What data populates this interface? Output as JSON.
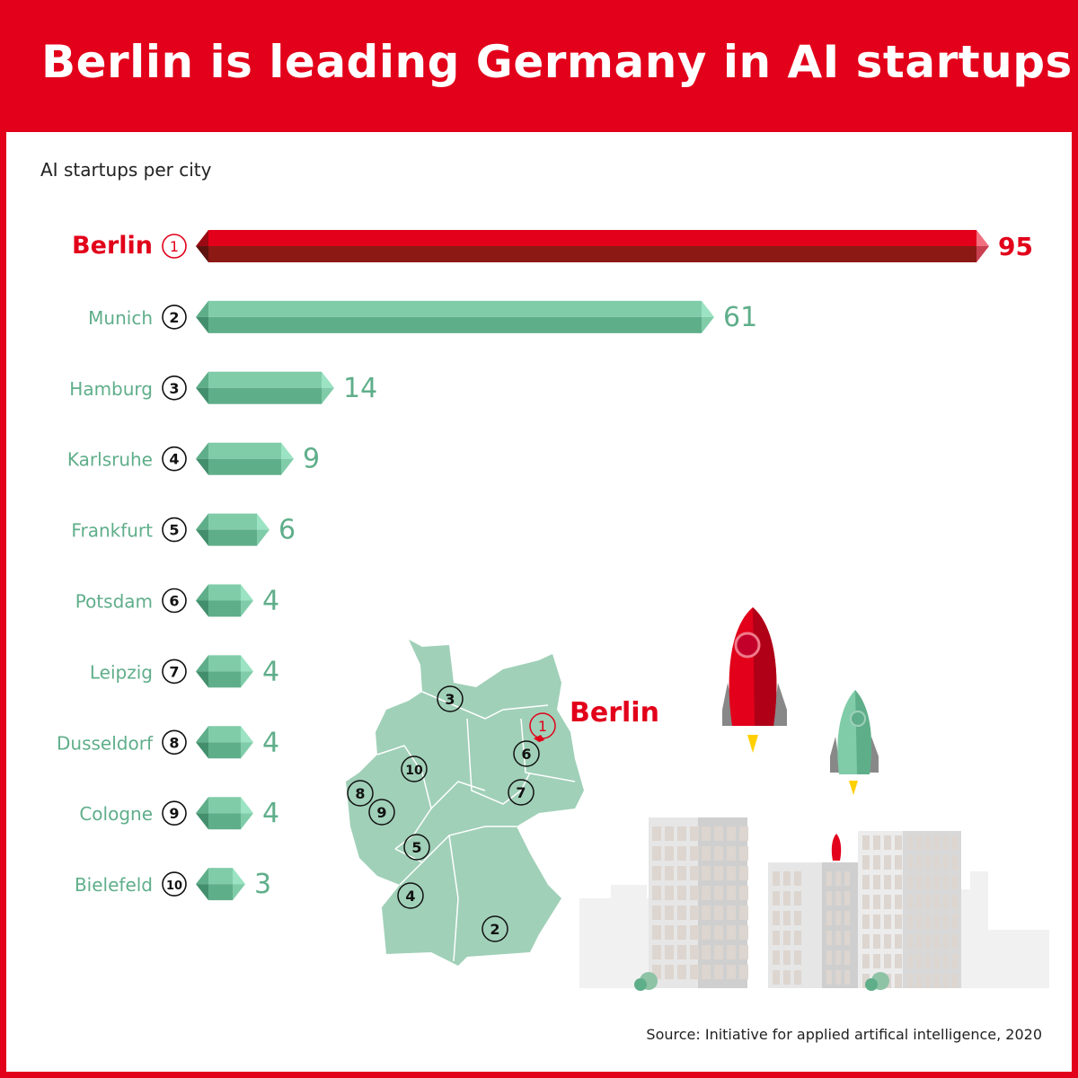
{
  "header": {
    "title": "Berlin is leading Germany in AI startups"
  },
  "source": "Source: Initiative for applied artifical intelligence, 2020",
  "colors": {
    "brand_red": "#e2001a",
    "bar_green": "#80cca9",
    "label_green": "#5fae8a",
    "map_green": "#a0d0b8"
  },
  "chart_data": {
    "type": "bar",
    "orientation": "horizontal",
    "title": "AI startups per city",
    "categories": [
      "Berlin",
      "Munich",
      "Hamburg",
      "Karlsruhe",
      "Frankfurt",
      "Potsdam",
      "Leipzig",
      "Dusseldorf",
      "Cologne",
      "Bielefeld"
    ],
    "ranks": [
      "1",
      "2",
      "3",
      "4",
      "5",
      "6",
      "7",
      "8",
      "9",
      "10"
    ],
    "values": [
      95,
      61,
      14,
      9,
      6,
      4,
      4,
      4,
      4,
      3
    ],
    "highlight": "Berlin",
    "value_labels_shown": true,
    "grid": false
  },
  "map": {
    "highlight_label": "Berlin",
    "markers": [
      "1",
      "2",
      "3",
      "4",
      "5",
      "6",
      "7",
      "8",
      "9",
      "10"
    ]
  }
}
